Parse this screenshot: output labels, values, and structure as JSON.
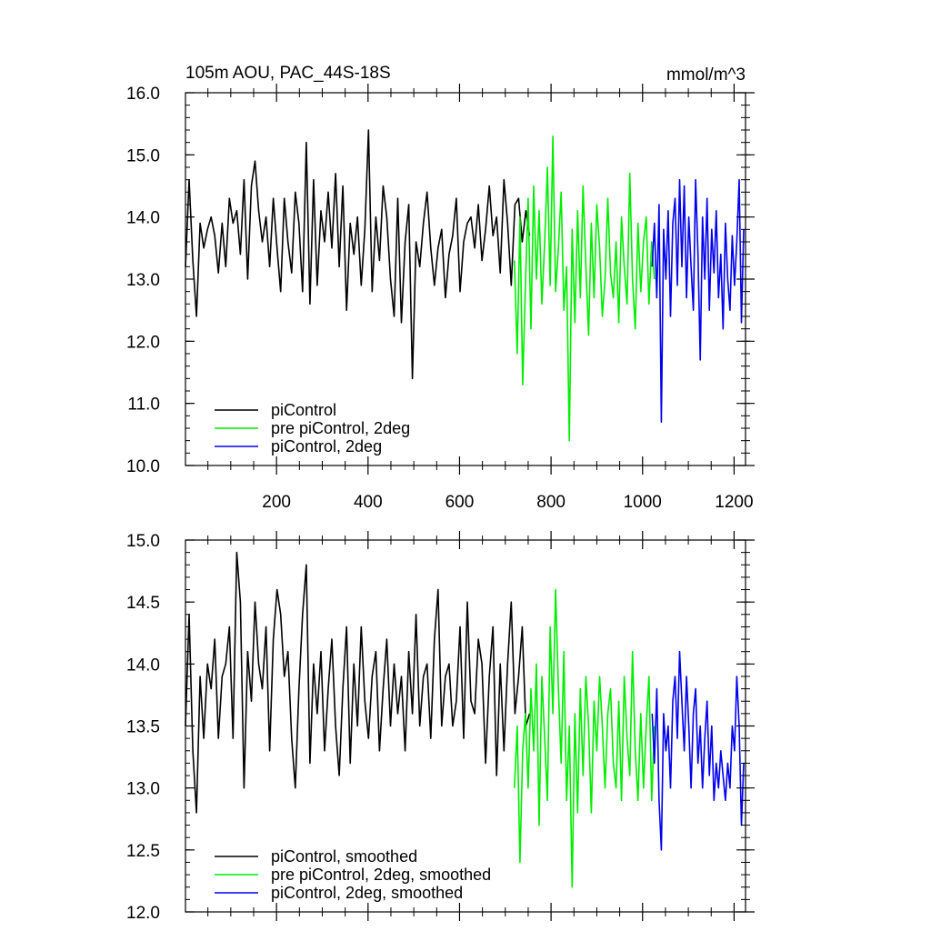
{
  "chart_data": [
    {
      "type": "line",
      "title_left": "105m AOU, PAC_44S-18S",
      "title_right": "mmol/m^3",
      "xlabel": "",
      "ylabel": "",
      "xlim": [
        1,
        1225
      ],
      "ylim": [
        10.0,
        16.0
      ],
      "xticks": [
        200,
        400,
        600,
        800,
        1000,
        1200
      ],
      "xtick_labels": [
        "200",
        "400",
        "600",
        "800",
        "1000",
        "1200"
      ],
      "yticks": [
        10.0,
        11.0,
        12.0,
        13.0,
        14.0,
        15.0,
        16.0
      ],
      "ytick_labels": [
        "10.0",
        "11.0",
        "12.0",
        "13.0",
        "14.0",
        "15.0",
        "16.0"
      ],
      "grid": false,
      "legend_position": "bottom-left",
      "series": [
        {
          "name": "piControl",
          "color": "#000000",
          "x_start": 1,
          "x_step": 8,
          "values": [
            13.2,
            14.6,
            13.3,
            12.4,
            13.9,
            13.5,
            13.8,
            14.0,
            13.7,
            13.1,
            13.9,
            13.2,
            14.3,
            13.9,
            14.1,
            13.4,
            14.6,
            13.0,
            14.5,
            14.9,
            14.1,
            13.6,
            14.0,
            13.2,
            14.3,
            13.5,
            12.8,
            14.3,
            13.6,
            13.1,
            14.4,
            13.9,
            12.8,
            15.2,
            12.6,
            14.6,
            12.9,
            14.1,
            13.6,
            14.4,
            13.5,
            14.7,
            13.2,
            14.5,
            12.5,
            13.9,
            13.4,
            14.0,
            12.9,
            13.8,
            15.4,
            12.8,
            14.0,
            13.3,
            14.5,
            14.0,
            13.0,
            12.4,
            14.3,
            12.3,
            13.6,
            14.2,
            11.4,
            13.6,
            13.2,
            13.9,
            14.4,
            13.5,
            12.9,
            13.5,
            13.8,
            12.7,
            13.4,
            13.7,
            14.3,
            12.8,
            13.6,
            13.9,
            14.0,
            13.5,
            14.2,
            13.3,
            13.8,
            14.5,
            13.7,
            14.0,
            13.1,
            14.6,
            13.9,
            12.9,
            14.2,
            14.3,
            13.6,
            14.1,
            13.7
          ],
          "smoothed": [
            13.5,
            14.4,
            13.3,
            12.8,
            13.9,
            13.4,
            14.0,
            13.8,
            14.2,
            13.4,
            13.9,
            14.0,
            14.3,
            13.4,
            14.9,
            14.5,
            13.0,
            14.1,
            13.7,
            14.5,
            14.0,
            13.8,
            14.3,
            13.3,
            14.2,
            14.6,
            14.4,
            13.9,
            14.1,
            13.4,
            13.0,
            13.8,
            14.4,
            14.8,
            13.2,
            14.0,
            13.6,
            14.1,
            13.3,
            13.8,
            14.2,
            13.5,
            13.1,
            13.8,
            14.3,
            13.2,
            14.0,
            13.5,
            14.3,
            13.7,
            13.4,
            13.9,
            14.1,
            13.3,
            13.8,
            14.2,
            13.5,
            14.0,
            13.6,
            13.9,
            13.3,
            14.1,
            13.6,
            14.4,
            13.5,
            13.9,
            14.0,
            13.4,
            14.2,
            14.6,
            13.5,
            13.9,
            14.0,
            13.5,
            13.7,
            14.3,
            13.4,
            14.5,
            13.7,
            13.6,
            14.2,
            14.0,
            13.2,
            13.9,
            14.3,
            13.1,
            14.0,
            13.3,
            14.0,
            14.5,
            13.6,
            13.9,
            14.3,
            13.5,
            13.6
          ]
        },
        {
          "name": "pre piControl, 2deg",
          "color": "#00ee00",
          "x_start": 720,
          "x_step": 6,
          "values": [
            13.3,
            11.8,
            14.0,
            11.3,
            12.9,
            14.3,
            12.2,
            14.5,
            13.0,
            14.1,
            12.6,
            13.6,
            14.8,
            12.9,
            15.3,
            12.8,
            13.5,
            14.4,
            12.5,
            13.2,
            10.4,
            13.8,
            12.3,
            14.1,
            12.7,
            14.5,
            13.2,
            12.1,
            13.9,
            12.7,
            14.2,
            13.5,
            12.4,
            13.0,
            14.3,
            13.1,
            12.7,
            13.6,
            12.3,
            14.0,
            13.2,
            12.6,
            14.7,
            13.0,
            12.2,
            13.9,
            12.8,
            13.6,
            14.0,
            12.6,
            13.6,
            13.0
          ],
          "smoothed": [
            13.0,
            13.5,
            12.4,
            13.3,
            13.6,
            13.0,
            13.8,
            13.3,
            14.0,
            12.7,
            13.9,
            13.4,
            12.9,
            14.3,
            13.6,
            14.6,
            13.8,
            13.2,
            14.1,
            12.9,
            13.5,
            12.2,
            13.6,
            12.8,
            13.8,
            13.1,
            13.9,
            13.5,
            12.8,
            13.7,
            13.3,
            13.9,
            13.5,
            13.0,
            13.6,
            13.8,
            13.2,
            13.0,
            13.7,
            12.9,
            13.9,
            13.4,
            13.1,
            14.1,
            13.3,
            12.9,
            13.6,
            13.0,
            13.5,
            13.9,
            12.9,
            13.5
          ]
        },
        {
          "name": "piControl, 2deg",
          "color": "#0000ee",
          "x_start": 1021,
          "x_step": 5,
          "values": [
            13.2,
            13.9,
            12.7,
            14.2,
            10.7,
            13.8,
            13.0,
            14.1,
            12.4,
            13.9,
            14.3,
            12.9,
            14.6,
            13.2,
            14.5,
            12.7,
            14.0,
            13.2,
            12.5,
            14.6,
            13.4,
            11.7,
            14.0,
            13.0,
            14.3,
            12.5,
            13.8,
            13.1,
            14.1,
            12.7,
            13.4,
            12.2,
            13.9,
            13.0,
            12.5,
            13.7,
            12.9,
            13.6,
            14.6,
            12.3,
            13.8
          ],
          "smoothed": [
            13.6,
            13.2,
            13.8,
            12.9,
            12.5,
            13.6,
            13.3,
            13.5,
            13.0,
            13.7,
            13.9,
            13.4,
            14.1,
            13.7,
            13.3,
            13.9,
            13.5,
            13.0,
            13.6,
            13.8,
            13.2,
            13.5,
            13.0,
            13.4,
            13.7,
            13.1,
            13.5,
            12.9,
            13.2,
            13.0,
            13.3,
            13.1,
            12.9,
            13.2,
            13.0,
            13.5,
            13.3,
            13.9,
            13.5,
            12.7,
            13.2
          ]
        }
      ]
    },
    {
      "type": "line",
      "xlabel": "",
      "ylabel": "",
      "xlim": [
        1,
        1225
      ],
      "ylim": [
        12.0,
        15.0
      ],
      "xticks": [
        200,
        400,
        600,
        800,
        1000,
        1200
      ],
      "yticks": [
        12.0,
        12.5,
        13.0,
        13.5,
        14.0,
        14.5,
        15.0
      ],
      "ytick_labels": [
        "12.0",
        "12.5",
        "13.0",
        "13.5",
        "14.0",
        "14.5",
        "15.0"
      ],
      "grid": false,
      "legend_position": "bottom-left",
      "series": [
        {
          "name": "piControl, smoothed",
          "color": "#000000",
          "source": 0
        },
        {
          "name": "pre piControl, 2deg, smoothed",
          "color": "#00ee00",
          "source": 1
        },
        {
          "name": "piControl, 2deg, smoothed",
          "color": "#0000ee",
          "source": 2
        }
      ]
    }
  ]
}
